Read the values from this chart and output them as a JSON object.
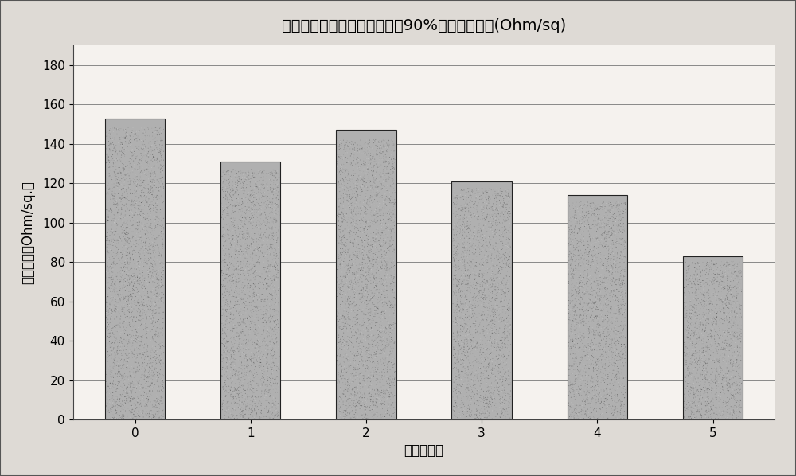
{
  "categories": [
    "0",
    "1",
    "2",
    "3",
    "4",
    "5"
  ],
  "values": [
    153,
    131,
    147,
    121,
    114,
    83
  ],
  "title": "基础条件和实施例在透过率为90%时的薄层电阻(Ohm/sq)",
  "xlabel": "实施例编号",
  "ylabel": "薄层电阻（Ohm/sq.）",
  "ylim": [
    0,
    190
  ],
  "yticks": [
    0,
    20,
    40,
    60,
    80,
    100,
    120,
    140,
    160,
    180
  ],
  "bar_color_base": "#b0b0b0",
  "bar_edgecolor": "#222222",
  "background_color": "#f5f2ee",
  "figure_facecolor": "#dedad5",
  "title_fontsize": 14,
  "axis_label_fontsize": 12,
  "tick_fontsize": 11,
  "bar_width": 0.52
}
